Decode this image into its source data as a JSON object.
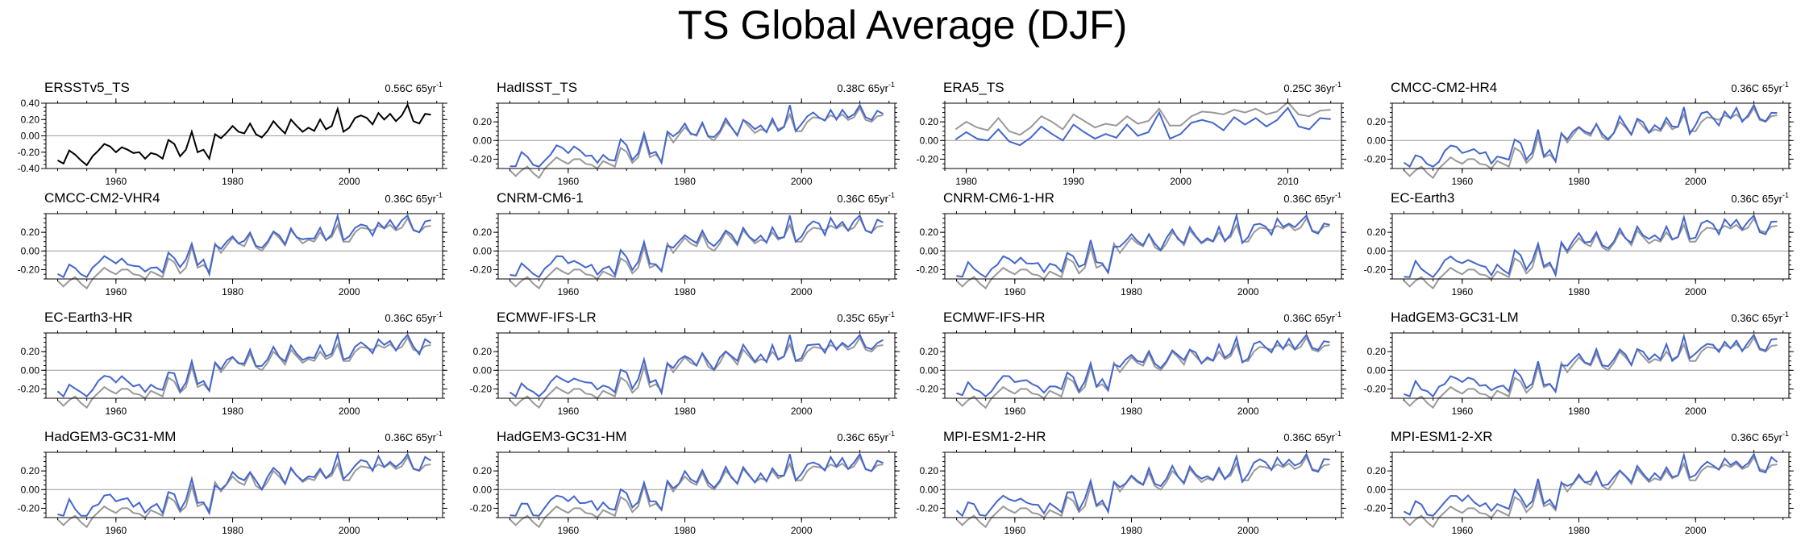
{
  "title": "TS Global Average (DJF)",
  "colors": {
    "reference": "#000000",
    "observation": "#999999",
    "model": "#4466cc",
    "axis": "#000000",
    "zero_line": "#999999"
  },
  "base_series": {
    "x_start": 1950,
    "values": [
      -0.3,
      -0.34,
      -0.18,
      -0.23,
      -0.3,
      -0.36,
      -0.25,
      -0.18,
      -0.1,
      -0.13,
      -0.2,
      -0.14,
      -0.17,
      -0.21,
      -0.2,
      -0.28,
      -0.21,
      -0.23,
      -0.28,
      -0.05,
      -0.1,
      -0.25,
      -0.17,
      0.05,
      -0.2,
      -0.17,
      -0.28,
      0.02,
      -0.03,
      0.04,
      0.12,
      0.05,
      0.03,
      0.15,
      0.02,
      -0.02,
      0.06,
      0.18,
      0.1,
      0.03,
      0.2,
      0.12,
      0.05,
      0.1,
      0.06,
      0.2,
      0.08,
      0.12,
      0.33,
      0.05,
      0.1,
      0.22,
      0.25,
      0.22,
      0.14,
      0.28,
      0.2,
      0.27,
      0.18,
      0.25,
      0.38,
      0.18,
      0.15,
      0.27,
      0.26
    ]
  },
  "obs_series": {
    "x_start": 1950,
    "values": [
      -0.32,
      -0.38,
      -0.32,
      -0.28,
      -0.35,
      -0.4,
      -0.3,
      -0.24,
      -0.18,
      -0.22,
      -0.25,
      -0.2,
      -0.2,
      -0.25,
      -0.26,
      -0.3,
      -0.22,
      -0.25,
      -0.28,
      -0.08,
      -0.12,
      -0.24,
      -0.18,
      0.04,
      -0.18,
      -0.15,
      -0.22,
      0.08,
      -0.02,
      0.06,
      0.14,
      0.08,
      0.05,
      0.18,
      0.04,
      0.0,
      0.08,
      0.2,
      0.14,
      0.06,
      0.22,
      0.15,
      0.08,
      0.12,
      0.1,
      0.2,
      0.12,
      0.15,
      0.28,
      0.1,
      0.1,
      0.2,
      0.25,
      0.24,
      0.22,
      0.27,
      0.24,
      0.28,
      0.22,
      0.25,
      0.35,
      0.22,
      0.2,
      0.26,
      0.27
    ]
  },
  "chart_data": [
    {
      "type": "line",
      "title": "ERSSTv5_TS",
      "trend": "0.56C 65yr",
      "trend_sup": "-1",
      "reference": true,
      "seed": 0,
      "xlim": [
        1948,
        2016
      ],
      "ylim": [
        -0.4,
        0.4
      ],
      "yticks": [
        -0.4,
        -0.2,
        0.0,
        0.2,
        0.4
      ],
      "yticklabels": [
        "-0.40",
        "-0.20",
        "0.00",
        "0.20",
        "0.40"
      ],
      "xticks": [
        1960,
        1980,
        2000
      ],
      "xticklabels": [
        "1960",
        "1980",
        "2000"
      ]
    },
    {
      "type": "line",
      "title": "HadISST_TS",
      "trend": "0.38C 65yr",
      "trend_sup": "-1",
      "seed": 1,
      "xlim": [
        1948,
        2016
      ],
      "ylim": [
        -0.3,
        0.4
      ],
      "yticks": [
        -0.2,
        0.0,
        0.2
      ],
      "yticklabels": [
        "-0.20",
        "0.00",
        "0.20"
      ],
      "xticks": [
        1960,
        1980,
        2000
      ],
      "xticklabels": [
        "1960",
        "1980",
        "2000"
      ]
    },
    {
      "type": "line",
      "title": "ERA5_TS",
      "trend": "0.25C 36yr",
      "trend_sup": "-1",
      "era5": true,
      "seed": 2,
      "xlim": [
        1978,
        2015
      ],
      "ylim": [
        -0.3,
        0.4
      ],
      "yticks": [
        -0.2,
        0.0,
        0.2
      ],
      "yticklabels": [
        "-0.20",
        "0.00",
        "0.20"
      ],
      "xticks": [
        1980,
        1990,
        2000,
        2010
      ],
      "xticklabels": [
        "1980",
        "1990",
        "2000",
        "2010"
      ]
    },
    {
      "type": "line",
      "title": "CMCC-CM2-HR4",
      "trend": "0.36C 65yr",
      "trend_sup": "-1",
      "seed": 3,
      "xlim": [
        1948,
        2016
      ],
      "ylim": [
        -0.3,
        0.4
      ],
      "yticks": [
        -0.2,
        0.0,
        0.2
      ],
      "yticklabels": [
        "-0.20",
        "0.00",
        "0.20"
      ],
      "xticks": [
        1960,
        1980,
        2000
      ],
      "xticklabels": [
        "1960",
        "1980",
        "2000"
      ]
    },
    {
      "type": "line",
      "title": "CMCC-CM2-VHR4",
      "trend": "0.36C 65yr",
      "trend_sup": "-1",
      "seed": 4,
      "xlim": [
        1948,
        2016
      ],
      "ylim": [
        -0.3,
        0.4
      ],
      "yticks": [
        -0.2,
        0.0,
        0.2
      ],
      "yticklabels": [
        "-0.20",
        "0.00",
        "0.20"
      ],
      "xticks": [
        1960,
        1980,
        2000
      ],
      "xticklabels": [
        "1960",
        "1980",
        "2000"
      ]
    },
    {
      "type": "line",
      "title": "CNRM-CM6-1",
      "trend": "0.36C 65yr",
      "trend_sup": "-1",
      "seed": 5,
      "xlim": [
        1948,
        2016
      ],
      "ylim": [
        -0.3,
        0.4
      ],
      "yticks": [
        -0.2,
        0.0,
        0.2
      ],
      "yticklabels": [
        "-0.20",
        "0.00",
        "0.20"
      ],
      "xticks": [
        1960,
        1980,
        2000
      ],
      "xticklabels": [
        "1960",
        "1980",
        "2000"
      ]
    },
    {
      "type": "line",
      "title": "CNRM-CM6-1-HR",
      "trend": "0.36C 65yr",
      "trend_sup": "-1",
      "seed": 6,
      "xlim": [
        1948,
        2016
      ],
      "ylim": [
        -0.3,
        0.4
      ],
      "yticks": [
        -0.2,
        0.0,
        0.2
      ],
      "yticklabels": [
        "-0.20",
        "0.00",
        "0.20"
      ],
      "xticks": [
        1960,
        1980,
        2000
      ],
      "xticklabels": [
        "1960",
        "1980",
        "2000"
      ]
    },
    {
      "type": "line",
      "title": "EC-Earth3",
      "trend": "0.36C 65yr",
      "trend_sup": "-1",
      "seed": 7,
      "xlim": [
        1948,
        2016
      ],
      "ylim": [
        -0.3,
        0.4
      ],
      "yticks": [
        -0.2,
        0.0,
        0.2
      ],
      "yticklabels": [
        "-0.20",
        "0.00",
        "0.20"
      ],
      "xticks": [
        1960,
        1980,
        2000
      ],
      "xticklabels": [
        "1960",
        "1980",
        "2000"
      ]
    },
    {
      "type": "line",
      "title": "EC-Earth3-HR",
      "trend": "0.36C 65yr",
      "trend_sup": "-1",
      "seed": 8,
      "xlim": [
        1948,
        2016
      ],
      "ylim": [
        -0.3,
        0.4
      ],
      "yticks": [
        -0.2,
        0.0,
        0.2
      ],
      "yticklabels": [
        "-0.20",
        "0.00",
        "0.20"
      ],
      "xticks": [
        1960,
        1980,
        2000
      ],
      "xticklabels": [
        "1960",
        "1980",
        "2000"
      ]
    },
    {
      "type": "line",
      "title": "ECMWF-IFS-LR",
      "trend": "0.35C 65yr",
      "trend_sup": "-1",
      "seed": 9,
      "xlim": [
        1948,
        2016
      ],
      "ylim": [
        -0.3,
        0.4
      ],
      "yticks": [
        -0.2,
        0.0,
        0.2
      ],
      "yticklabels": [
        "-0.20",
        "0.00",
        "0.20"
      ],
      "xticks": [
        1960,
        1980,
        2000
      ],
      "xticklabels": [
        "1960",
        "1980",
        "2000"
      ]
    },
    {
      "type": "line",
      "title": "ECMWF-IFS-HR",
      "trend": "0.36C 65yr",
      "trend_sup": "-1",
      "seed": 10,
      "xlim": [
        1948,
        2016
      ],
      "ylim": [
        -0.3,
        0.4
      ],
      "yticks": [
        -0.2,
        0.0,
        0.2
      ],
      "yticklabels": [
        "-0.20",
        "0.00",
        "0.20"
      ],
      "xticks": [
        1960,
        1980,
        2000
      ],
      "xticklabels": [
        "1960",
        "1980",
        "2000"
      ]
    },
    {
      "type": "line",
      "title": "HadGEM3-GC31-LM",
      "trend": "0.36C 65yr",
      "trend_sup": "-1",
      "seed": 11,
      "xlim": [
        1948,
        2016
      ],
      "ylim": [
        -0.3,
        0.4
      ],
      "yticks": [
        -0.2,
        0.0,
        0.2
      ],
      "yticklabels": [
        "-0.20",
        "0.00",
        "0.20"
      ],
      "xticks": [
        1960,
        1980,
        2000
      ],
      "xticklabels": [
        "1960",
        "1980",
        "2000"
      ]
    },
    {
      "type": "line",
      "title": "HadGEM3-GC31-MM",
      "trend": "0.36C 65yr",
      "trend_sup": "-1",
      "seed": 12,
      "xlim": [
        1948,
        2016
      ],
      "ylim": [
        -0.3,
        0.4
      ],
      "yticks": [
        -0.2,
        0.0,
        0.2
      ],
      "yticklabels": [
        "-0.20",
        "0.00",
        "0.20"
      ],
      "xticks": [
        1960,
        1980,
        2000
      ],
      "xticklabels": [
        "1960",
        "1980",
        "2000"
      ]
    },
    {
      "type": "line",
      "title": "HadGEM3-GC31-HM",
      "trend": "0.36C 65yr",
      "trend_sup": "-1",
      "seed": 13,
      "xlim": [
        1948,
        2016
      ],
      "ylim": [
        -0.3,
        0.4
      ],
      "yticks": [
        -0.2,
        0.0,
        0.2
      ],
      "yticklabels": [
        "-0.20",
        "0.00",
        "0.20"
      ],
      "xticks": [
        1960,
        1980,
        2000
      ],
      "xticklabels": [
        "1960",
        "1980",
        "2000"
      ]
    },
    {
      "type": "line",
      "title": "MPI-ESM1-2-HR",
      "trend": "0.36C 65yr",
      "trend_sup": "-1",
      "seed": 14,
      "xlim": [
        1948,
        2016
      ],
      "ylim": [
        -0.3,
        0.4
      ],
      "yticks": [
        -0.2,
        0.0,
        0.2
      ],
      "yticklabels": [
        "-0.20",
        "0.00",
        "0.20"
      ],
      "xticks": [
        1960,
        1980,
        2000
      ],
      "xticklabels": [
        "1960",
        "1980",
        "2000"
      ]
    },
    {
      "type": "line",
      "title": "MPI-ESM1-2-XR",
      "trend": "0.36C 65yr",
      "trend_sup": "-1",
      "seed": 15,
      "xlim": [
        1948,
        2016
      ],
      "ylim": [
        -0.3,
        0.4
      ],
      "yticks": [
        -0.2,
        0.0,
        0.2
      ],
      "yticklabels": [
        "-0.20",
        "0.00",
        "0.20"
      ],
      "xticks": [
        1960,
        1980,
        2000
      ],
      "xticklabels": [
        "1960",
        "1980",
        "2000"
      ]
    }
  ]
}
